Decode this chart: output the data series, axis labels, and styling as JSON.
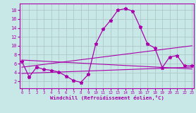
{
  "xlabel": "Windchill (Refroidissement éolien,°C)",
  "bg_color": "#c8e8e8",
  "grid_color": "#b0c8c8",
  "line_color": "#aa00aa",
  "x_ticks": [
    0,
    1,
    2,
    3,
    4,
    5,
    6,
    7,
    8,
    9,
    10,
    11,
    12,
    13,
    14,
    15,
    16,
    17,
    18,
    19,
    20,
    21,
    22,
    23
  ],
  "y_ticks": [
    2,
    4,
    6,
    8,
    10,
    12,
    14,
    16,
    18
  ],
  "xlim": [
    -0.3,
    23.3
  ],
  "ylim": [
    0.5,
    19.5
  ],
  "main_x": [
    0,
    1,
    2,
    3,
    4,
    5,
    6,
    7,
    8,
    9,
    10,
    11,
    12,
    13,
    14,
    15,
    16,
    17,
    18,
    19,
    20,
    21,
    22,
    23
  ],
  "main_y": [
    6.5,
    3.0,
    5.2,
    4.7,
    4.5,
    4.1,
    3.2,
    2.2,
    1.8,
    3.6,
    10.4,
    13.7,
    15.7,
    18.0,
    18.3,
    17.8,
    14.2,
    10.4,
    9.5,
    5.1,
    7.5,
    7.8,
    5.5,
    5.5
  ],
  "trend1_x": [
    0,
    23
  ],
  "trend1_y": [
    3.8,
    5.2
  ],
  "trend2_x": [
    0,
    23
  ],
  "trend2_y": [
    5.2,
    10.0
  ],
  "trend3_x": [
    0,
    23
  ],
  "trend3_y": [
    6.8,
    4.8
  ]
}
